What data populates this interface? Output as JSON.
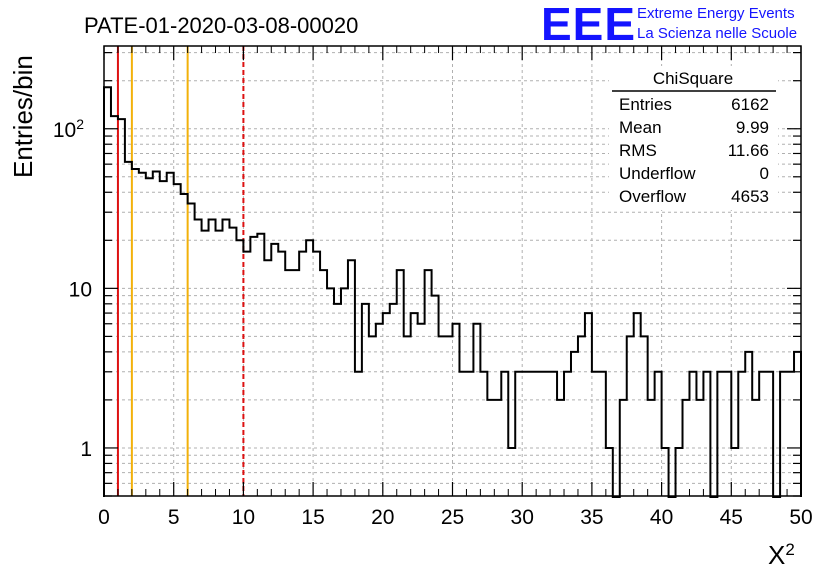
{
  "title": "PATE-01-2020-03-08-00020",
  "logo": {
    "mark": "EEE",
    "line1": "Extreme Energy Events",
    "line2": "La Scienza nelle Scuole",
    "color": "#1414ff"
  },
  "stats": {
    "name": "ChiSquare",
    "rows": [
      {
        "label": "Entries",
        "value": "6162"
      },
      {
        "label": "Mean",
        "value": "9.99"
      },
      {
        "label": "RMS",
        "value": "11.66"
      },
      {
        "label": "Underflow",
        "value": "0"
      },
      {
        "label": "Overflow",
        "value": "4653"
      }
    ]
  },
  "chart_data": {
    "type": "histogram",
    "xlabel": "X²",
    "ylabel": "Entries/bin",
    "xlim": [
      0,
      50
    ],
    "ylim": [
      0.5,
      330
    ],
    "yscale": "log",
    "grid": true,
    "x_ticks": [
      "0",
      "5",
      "10",
      "15",
      "20",
      "25",
      "30",
      "35",
      "40",
      "45",
      "50"
    ],
    "y_ticks": [
      {
        "value": 1,
        "label": "1"
      },
      {
        "value": 10,
        "label": "10"
      },
      {
        "value": 100,
        "label": "10",
        "exponent": "2"
      }
    ],
    "bin_width": 0.5,
    "counts": [
      182,
      120,
      115,
      62,
      56,
      53,
      49,
      54,
      47,
      53,
      45,
      39,
      34,
      27,
      23,
      27,
      23,
      27,
      24,
      20,
      17,
      21,
      22,
      15,
      19,
      17,
      13,
      13,
      17,
      20,
      17,
      13,
      10,
      8,
      10,
      15,
      3,
      8,
      5,
      6,
      7,
      8,
      13,
      5,
      7,
      6,
      13,
      9,
      5,
      5,
      6,
      3,
      3,
      6,
      3,
      2,
      2,
      3,
      1,
      3,
      3,
      3,
      3,
      3,
      3,
      2,
      3,
      4,
      5,
      7,
      3,
      3,
      1,
      0,
      2,
      5,
      7,
      5,
      2,
      3,
      1,
      0,
      1,
      2,
      3,
      2,
      3,
      0,
      3,
      3,
      1,
      3,
      4,
      2,
      3,
      3,
      0,
      3,
      3,
      4
    ],
    "markers": [
      {
        "x": 1,
        "color": "#dd1111",
        "style": "solid"
      },
      {
        "x": 2,
        "color": "#f2b10a",
        "style": "solid"
      },
      {
        "x": 6,
        "color": "#f2b10a",
        "style": "solid"
      },
      {
        "x": 10,
        "color": "#dd1111",
        "style": "dashed"
      }
    ],
    "colors": {
      "line": "#000000",
      "grid": "#b0b0b0"
    }
  }
}
